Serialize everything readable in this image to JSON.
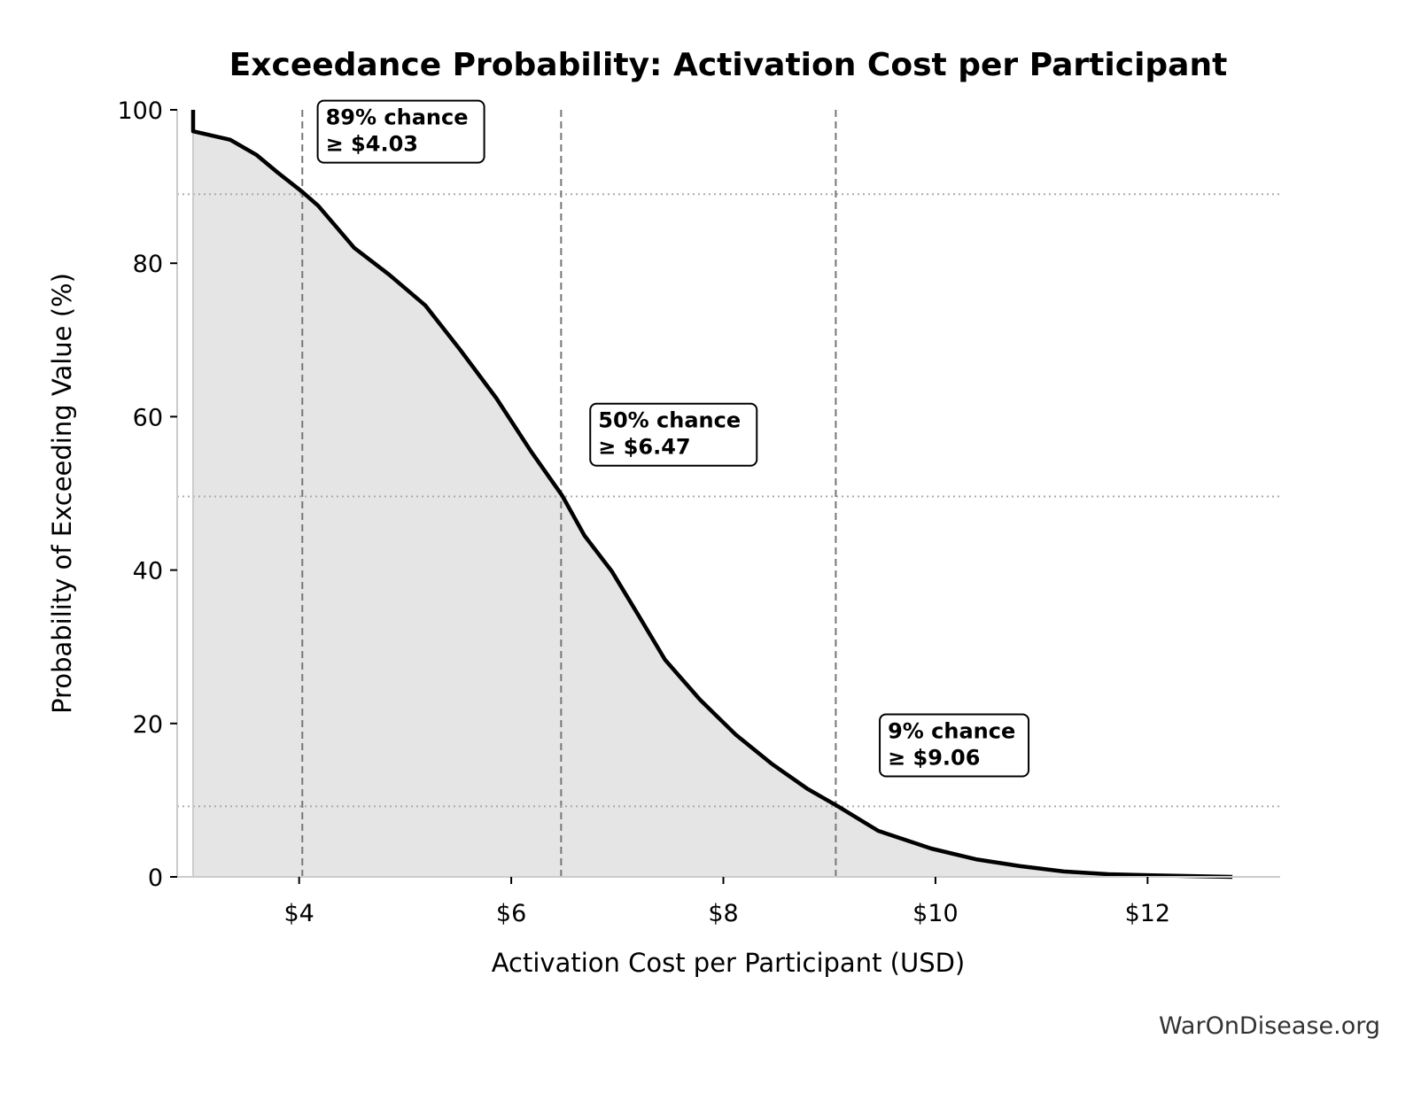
{
  "chart_data": {
    "type": "area",
    "title": "Exceedance Probability: Activation Cost per Participant",
    "xlabel": "Activation Cost per Participant (USD)",
    "ylabel": "Probability of Exceeding Value (%)",
    "xlim": [
      2.85,
      13.25
    ],
    "ylim": [
      0,
      100
    ],
    "x_ticks": [
      4,
      6,
      8,
      10,
      12
    ],
    "x_tick_labels": [
      "$4",
      "$6",
      "$8",
      "$10",
      "$12"
    ],
    "y_ticks": [
      0,
      20,
      40,
      60,
      80,
      100
    ],
    "y_tick_labels": [
      "0",
      "20",
      "40",
      "60",
      "80",
      "100"
    ],
    "grid": false,
    "line_color": "#000000",
    "fill_color": "#e5e5e5",
    "series": [
      {
        "x": [
          3.0,
          3.0,
          3.35,
          3.6,
          3.8,
          4.03,
          4.18,
          4.52,
          4.85,
          5.19,
          5.52,
          5.86,
          6.19,
          6.48,
          6.69,
          6.95,
          7.2,
          7.45,
          7.78,
          8.12,
          8.45,
          8.79,
          9.08,
          9.46,
          9.96,
          10.38,
          10.8,
          11.21,
          11.63,
          12.05,
          12.8
        ],
        "y": [
          100,
          97.2,
          96.1,
          94.1,
          91.8,
          89.3,
          87.5,
          82,
          78.5,
          74.5,
          68.7,
          62.4,
          55.4,
          49.7,
          44.5,
          39.8,
          34.1,
          28.3,
          23.1,
          18.5,
          14.8,
          11.5,
          9.2,
          6.0,
          3.7,
          2.3,
          1.4,
          0.7,
          0.35,
          0.2,
          0
        ]
      }
    ],
    "reference_lines": [
      {
        "x": 4.03,
        "y": 89,
        "label_line1": "89% chance",
        "label_line2": "≥ $4.03",
        "label_x": 4.25,
        "label_y": 97.5
      },
      {
        "x": 6.47,
        "y": 49.6,
        "label_line1": "50% chance",
        "label_line2": "≥ $6.47",
        "label_x": 6.82,
        "label_y": 58
      },
      {
        "x": 9.06,
        "y": 9.2,
        "label_line1": "9% chance",
        "label_line2": "≥ $9.06",
        "label_x": 9.55,
        "label_y": 17.5
      }
    ],
    "watermark": "WarOnDisease.org"
  }
}
